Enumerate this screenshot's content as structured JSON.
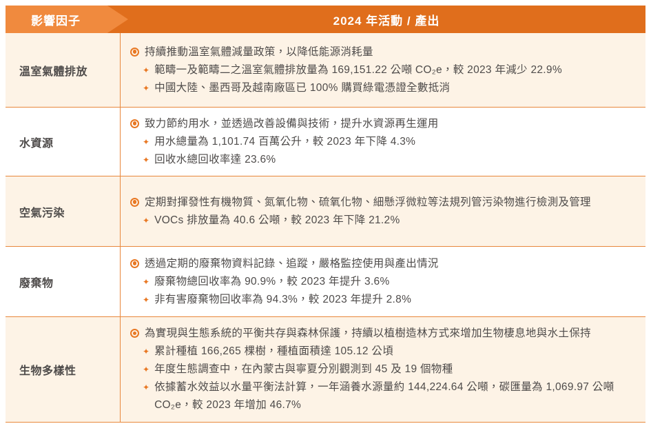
{
  "header": {
    "col1": "影響因子",
    "col2": "2024 年活動 / 產出"
  },
  "icons": {
    "bullet": "ring-bullet",
    "sub_bullet": "✦"
  },
  "colors": {
    "header_dark": "#E06E1C",
    "header_light": "#F08A3E",
    "row_cream": "#FDF3E6",
    "border": "#E8873B",
    "bullet": "#E87722",
    "text": "#4E4B4A"
  },
  "rows": [
    {
      "factor": "溫室氣體排放",
      "items": [
        {
          "text": "持續推動溫室氣體減量政策，以降低能源消耗量",
          "subitems": [
            "範疇一及範疇二之溫室氣體排放量為 169,151.22 公噸 CO₂e，較 2023 年減少 22.9%",
            "中國大陸、墨西哥及越南廠區已 100% 購買綠電憑證全數抵消"
          ]
        }
      ]
    },
    {
      "factor": "水資源",
      "items": [
        {
          "text": "致力節約用水，並透過改善設備與技術，提升水資源再生運用",
          "subitems": [
            "用水總量為 1,101.74 百萬公升，較 2023 年下降 4.3%",
            "回收水總回收率達 23.6%"
          ]
        }
      ]
    },
    {
      "factor": "空氣污染",
      "items": [
        {
          "text": "定期對揮發性有機物質、氮氧化物、硫氧化物、細懸浮微粒等法規列管污染物進行檢測及管理",
          "subitems": [
            "VOCs 排放量為 40.6 公噸，較 2023 年下降 21.2%"
          ]
        }
      ]
    },
    {
      "factor": "廢棄物",
      "items": [
        {
          "text": "透過定期的廢棄物資料記錄、追蹤，嚴格監控使用與產出情況",
          "subitems": [
            "廢棄物總回收率為 90.9%，較 2023 年提升 3.6%",
            "非有害廢棄物回收率為 94.3%，較 2023 年提升 2.8%"
          ]
        }
      ]
    },
    {
      "factor": "生物多樣性",
      "items": [
        {
          "text": "為實現與生態系統的平衡共存與森林保護，持續以植樹造林方式來增加生物棲息地與水土保持",
          "subitems": [
            "累計種植 166,265 棵樹，種植面積達 105.12 公頃",
            "年度生態調查中，在內蒙古與寧夏分別觀測到 45 及 19 個物種",
            "依據蓄水效益以水量平衡法計算，一年涵養水源量約 144,224.64 公噸，碳匯量為 1,069.97 公噸 CO₂e，較 2023 年增加 46.7%"
          ]
        }
      ]
    }
  ]
}
